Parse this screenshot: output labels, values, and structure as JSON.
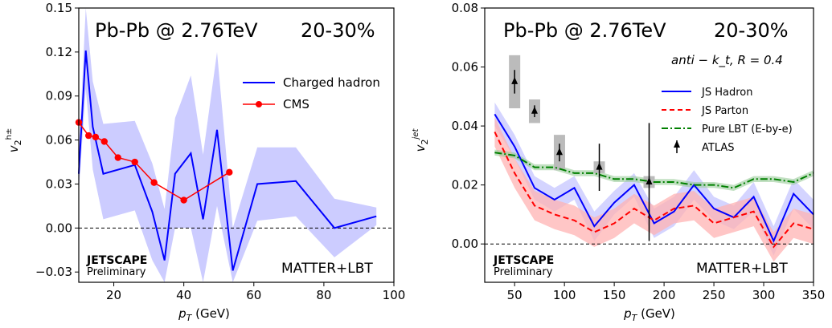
{
  "chart_data": [
    {
      "type": "line",
      "title": "Pb-Pb @ 2.76TeV",
      "centrality": "20-30%",
      "xlabel": "p_T (GeV)",
      "ylabel": "v_2^{h±}",
      "xlim": [
        10,
        100
      ],
      "ylim": [
        -0.037,
        0.15
      ],
      "xticks": [
        "20",
        "40",
        "60",
        "80",
        "100"
      ],
      "xtick_values": [
        20,
        40,
        60,
        80,
        100
      ],
      "yticks": [
        "−0.03",
        "0.00",
        "0.03",
        "0.06",
        "0.09",
        "0.12",
        "0.15"
      ],
      "ytick_values": [
        -0.03,
        0.0,
        0.03,
        0.06,
        0.09,
        0.12,
        0.15
      ],
      "legend_position": "upper right",
      "brand": "JETSCAPE",
      "brand_sub": "Preliminary",
      "model": "MATTER+LBT",
      "series": [
        {
          "name": "Charged hadron",
          "color": "#0000ff",
          "x": [
            10,
            12,
            14,
            17,
            26,
            31,
            34.5,
            37.5,
            42,
            45.5,
            49.5,
            54,
            61,
            72,
            83,
            95
          ],
          "y": [
            0.037,
            0.121,
            0.069,
            0.037,
            0.043,
            0.011,
            -0.022,
            0.037,
            0.051,
            0.006,
            0.067,
            -0.029,
            0.03,
            0.032,
            0.0,
            0.008
          ],
          "band_upper": [
            0.05,
            0.155,
            0.1,
            0.071,
            0.073,
            0.044,
            0.013,
            0.075,
            0.104,
            0.05,
            0.12,
            0.0,
            0.055,
            0.055,
            0.02,
            0.014
          ],
          "band_lower": [
            0.025,
            0.095,
            0.04,
            0.006,
            0.012,
            -0.022,
            -0.037,
            0.0,
            0.0,
            -0.037,
            0.015,
            -0.037,
            0.005,
            0.008,
            -0.02,
            0.002
          ]
        },
        {
          "name": "CMS",
          "color": "#ff0000",
          "x": [
            10,
            12.8,
            14.8,
            17.3,
            21.2,
            26,
            31.5,
            40,
            53
          ],
          "y": [
            0.072,
            0.063,
            0.062,
            0.059,
            0.048,
            0.045,
            0.031,
            0.019,
            0.038
          ]
        }
      ]
    },
    {
      "type": "line",
      "title": "Pb-Pb @ 2.76TeV",
      "centrality": "20-30%",
      "annotation": "anti − k_t, R = 0.4",
      "xlabel": "p_T (GeV)",
      "ylabel": "v_2^{jet}",
      "xlim": [
        20,
        350
      ],
      "ylim": [
        -0.013,
        0.08
      ],
      "xticks": [
        "50",
        "100",
        "150",
        "200",
        "250",
        "300",
        "350"
      ],
      "xtick_values": [
        50,
        100,
        150,
        200,
        250,
        300,
        350
      ],
      "yticks": [
        "0.00",
        "0.02",
        "0.04",
        "0.06",
        "0.08"
      ],
      "ytick_values": [
        0.0,
        0.02,
        0.04,
        0.06,
        0.08
      ],
      "legend_position": "right",
      "brand": "JETSCAPE",
      "brand_sub": "Preliminary",
      "model": "MATTER+LBT",
      "series": [
        {
          "name": "JS Hadron",
          "color": "#0000ff",
          "style": "solid",
          "x": [
            30,
            50,
            70,
            90,
            110,
            130,
            150,
            170,
            190,
            210,
            230,
            250,
            270,
            290,
            310,
            330,
            350
          ],
          "y": [
            0.044,
            0.033,
            0.019,
            0.015,
            0.019,
            0.006,
            0.014,
            0.02,
            0.007,
            0.011,
            0.02,
            0.012,
            0.009,
            0.016,
            0.001,
            0.017,
            0.01
          ],
          "band_upper": [
            0.048,
            0.037,
            0.023,
            0.019,
            0.023,
            0.011,
            0.018,
            0.024,
            0.012,
            0.016,
            0.025,
            0.016,
            0.013,
            0.021,
            0.006,
            0.022,
            0.015
          ],
          "band_lower": [
            0.04,
            0.029,
            0.015,
            0.011,
            0.015,
            0.001,
            0.01,
            0.016,
            0.002,
            0.006,
            0.015,
            0.008,
            0.005,
            0.011,
            -0.004,
            0.012,
            0.005
          ]
        },
        {
          "name": "JS Parton",
          "color": "#ff0000",
          "style": "dashed",
          "x": [
            30,
            50,
            70,
            90,
            110,
            130,
            150,
            170,
            190,
            210,
            230,
            250,
            270,
            290,
            310,
            330,
            350
          ],
          "y": [
            0.038,
            0.024,
            0.013,
            0.01,
            0.008,
            0.004,
            0.007,
            0.012,
            0.008,
            0.012,
            0.013,
            0.007,
            0.009,
            0.011,
            -0.001,
            0.007,
            0.005
          ],
          "band_upper": [
            0.043,
            0.029,
            0.018,
            0.015,
            0.013,
            0.009,
            0.012,
            0.017,
            0.013,
            0.017,
            0.018,
            0.012,
            0.014,
            0.016,
            0.004,
            0.012,
            0.01
          ],
          "band_lower": [
            0.033,
            0.019,
            0.008,
            0.005,
            0.003,
            -0.001,
            0.002,
            0.007,
            0.003,
            0.007,
            0.008,
            0.002,
            0.004,
            0.006,
            -0.006,
            0.002,
            0.0
          ]
        },
        {
          "name": "Pure LBT (E-by-e)",
          "color": "#008000",
          "style": "dashdot",
          "x": [
            30,
            50,
            70,
            90,
            110,
            130,
            150,
            170,
            190,
            210,
            230,
            250,
            270,
            290,
            310,
            330,
            350
          ],
          "y": [
            0.031,
            0.03,
            0.026,
            0.026,
            0.024,
            0.024,
            0.022,
            0.022,
            0.021,
            0.021,
            0.02,
            0.02,
            0.019,
            0.022,
            0.022,
            0.021,
            0.024
          ],
          "band_upper": [
            0.032,
            0.031,
            0.027,
            0.027,
            0.025,
            0.025,
            0.023,
            0.023,
            0.022,
            0.022,
            0.021,
            0.021,
            0.02,
            0.023,
            0.023,
            0.022,
            0.025
          ],
          "band_lower": [
            0.03,
            0.029,
            0.025,
            0.025,
            0.023,
            0.023,
            0.021,
            0.021,
            0.02,
            0.02,
            0.019,
            0.019,
            0.018,
            0.021,
            0.021,
            0.02,
            0.023
          ]
        },
        {
          "name": "ATLAS",
          "color": "#000000",
          "style": "points",
          "x": [
            50,
            70,
            95,
            135,
            185
          ],
          "y": [
            0.055,
            0.045,
            0.031,
            0.026,
            0.021
          ],
          "err": [
            0.004,
            0.002,
            0.003,
            0.008,
            0.02
          ],
          "sys": [
            0.009,
            0.004,
            0.006,
            0.002,
            0.002
          ]
        }
      ]
    }
  ]
}
